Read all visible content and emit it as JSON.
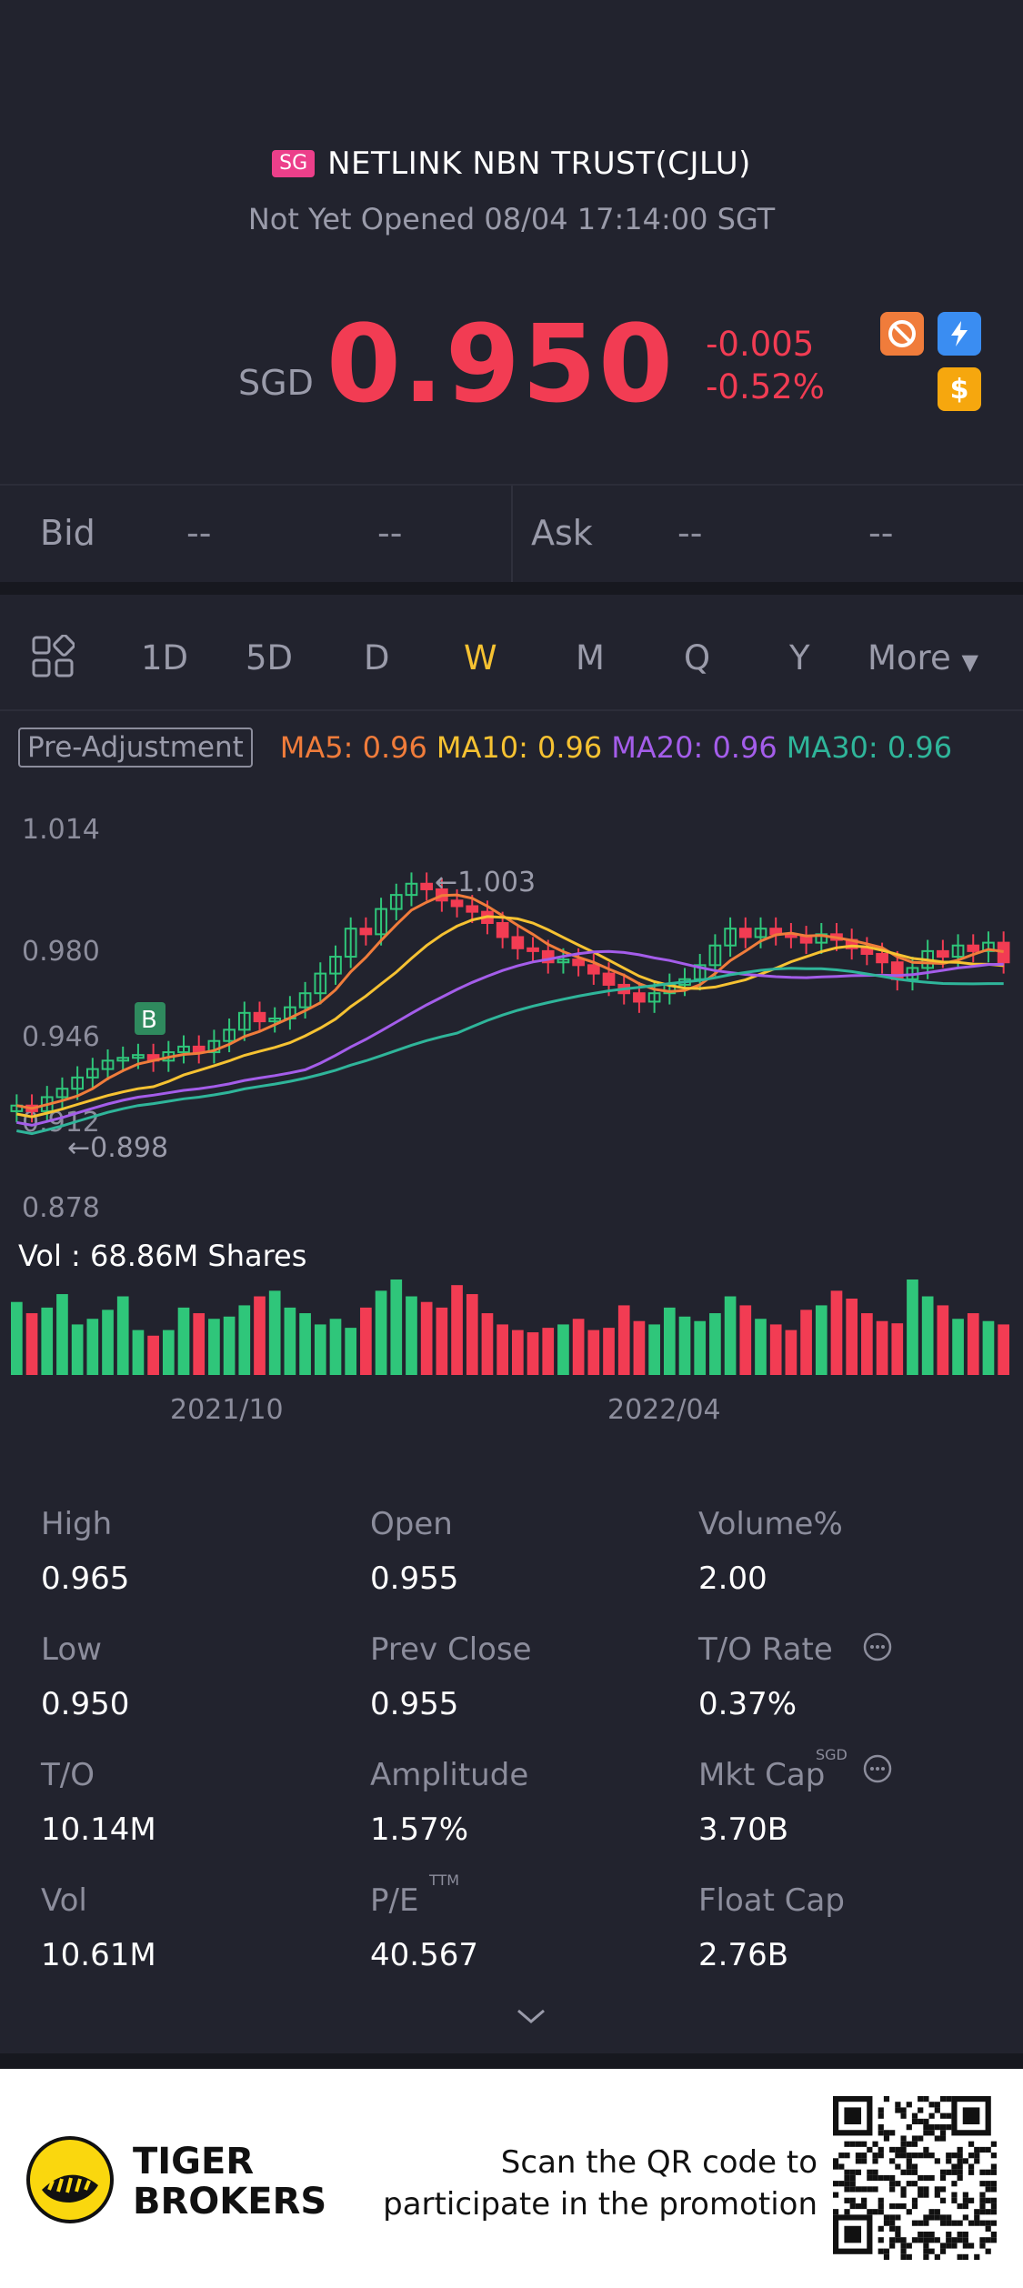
{
  "header": {
    "market_badge": "SG",
    "title": "NETLINK NBN TRUST(CJLU)",
    "status": "Not Yet Opened 08/04 17:14:00 SGT",
    "currency": "SGD",
    "price": "0.950",
    "change": "-0.005",
    "change_pct": "-0.52%",
    "colors": {
      "down": "#f23c53",
      "up": "#2fc67a"
    }
  },
  "bidask": {
    "bid_label": "Bid",
    "bid_price": "--",
    "bid_size": "--",
    "ask_label": "Ask",
    "ask_price": "--",
    "ask_size": "--"
  },
  "tabs": [
    "1D",
    "5D",
    "D",
    "W",
    "M",
    "Q",
    "Y",
    "More"
  ],
  "active_tab": "W",
  "ma": {
    "pre_adjustment": "Pre-Adjustment",
    "items": [
      {
        "text": "MA5: 0.96",
        "color": "#f07c3b"
      },
      {
        "text": "MA10: 0.96",
        "color": "#f6c232"
      },
      {
        "text": "MA20: 0.96",
        "color": "#a45dea"
      },
      {
        "text": "MA30: 0.96",
        "color": "#2fb59a"
      }
    ]
  },
  "chart_data": {
    "type": "candlestick",
    "y_ticks": [
      "1.014",
      "0.980",
      "0.946",
      "0.912",
      "0.878"
    ],
    "ylim": [
      0.878,
      1.014
    ],
    "high_label": "1.003",
    "low_label": "0.898",
    "marker_label": "B",
    "x_ticks": [
      "2021/10",
      "2022/04"
    ],
    "volume_label": "Vol  : 68.86M Shares",
    "closes": [
      0.915,
      0.913,
      0.918,
      0.921,
      0.925,
      0.928,
      0.931,
      0.932,
      0.933,
      0.931,
      0.934,
      0.936,
      0.934,
      0.938,
      0.942,
      0.948,
      0.945,
      0.946,
      0.95,
      0.955,
      0.962,
      0.968,
      0.978,
      0.976,
      0.985,
      0.99,
      0.994,
      0.992,
      0.988,
      0.986,
      0.984,
      0.98,
      0.975,
      0.971,
      0.97,
      0.966,
      0.967,
      0.965,
      0.962,
      0.958,
      0.955,
      0.952,
      0.955,
      0.958,
      0.96,
      0.965,
      0.972,
      0.978,
      0.975,
      0.978,
      0.976,
      0.975,
      0.973,
      0.976,
      0.974,
      0.971,
      0.969,
      0.966,
      0.96,
      0.964,
      0.97,
      0.968,
      0.972,
      0.97,
      0.973,
      0.966
    ],
    "volume": [
      65,
      55,
      60,
      72,
      45,
      50,
      58,
      70,
      40,
      35,
      40,
      60,
      55,
      50,
      52,
      62,
      70,
      75,
      60,
      55,
      45,
      50,
      42,
      60,
      75,
      85,
      70,
      65,
      60,
      80,
      72,
      55,
      45,
      40,
      38,
      42,
      45,
      50,
      40,
      42,
      62,
      48,
      45,
      60,
      52,
      48,
      55,
      70,
      62,
      50,
      45,
      40,
      58,
      62,
      75,
      68,
      55,
      48,
      46,
      85,
      70,
      62,
      50,
      55,
      48,
      45
    ],
    "ma_lines": [
      {
        "name": "MA5",
        "color": "#f07c3b"
      },
      {
        "name": "MA10",
        "color": "#f6c232"
      },
      {
        "name": "MA20",
        "color": "#a45dea"
      },
      {
        "name": "MA30",
        "color": "#2fb59a"
      }
    ]
  },
  "stats": [
    {
      "label": "High",
      "value": "0.965"
    },
    {
      "label": "Open",
      "value": "0.955"
    },
    {
      "label": "Volume%",
      "value": "2.00"
    },
    {
      "label": "Low",
      "value": "0.950"
    },
    {
      "label": "Prev Close",
      "value": "0.955"
    },
    {
      "label": "T/O Rate",
      "value": "0.37%"
    },
    {
      "label": "T/O",
      "value": "10.14M"
    },
    {
      "label": "Amplitude",
      "value": "1.57%"
    },
    {
      "label": "Mkt Cap",
      "value": "3.70B"
    },
    {
      "label": "Vol",
      "value": "10.61M"
    },
    {
      "label": "P/E",
      "value": "40.567"
    },
    {
      "label": "Float Cap",
      "value": "2.76B"
    }
  ],
  "stat_superscripts": {
    "pe": "TTM",
    "mktcap": "SGD"
  },
  "footer": {
    "brand_line1": "TIGER",
    "brand_line2": "BROKERS",
    "promo_line1": "Scan the QR code to",
    "promo_line2": "participate in the promotion"
  },
  "icons": {
    "forbid": "forbid-icon",
    "flash": "flash-icon",
    "dollar": "dollar-icon"
  }
}
